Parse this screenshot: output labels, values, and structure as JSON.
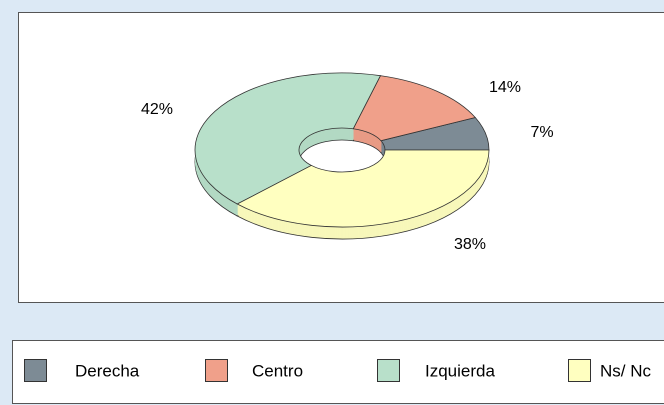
{
  "chart_data": {
    "type": "pie",
    "donut": true,
    "three_d": true,
    "categories": [
      "Derecha",
      "Centro",
      "Izquierda",
      "Ns/ Nc"
    ],
    "values": [
      7,
      14,
      42,
      38
    ],
    "value_labels": [
      "7%",
      "14%",
      "42%",
      "38%"
    ],
    "colors": [
      "#7d8b95",
      "#f0a08a",
      "#b8e0ca",
      "#ffffc0"
    ],
    "legend": "bottom"
  }
}
